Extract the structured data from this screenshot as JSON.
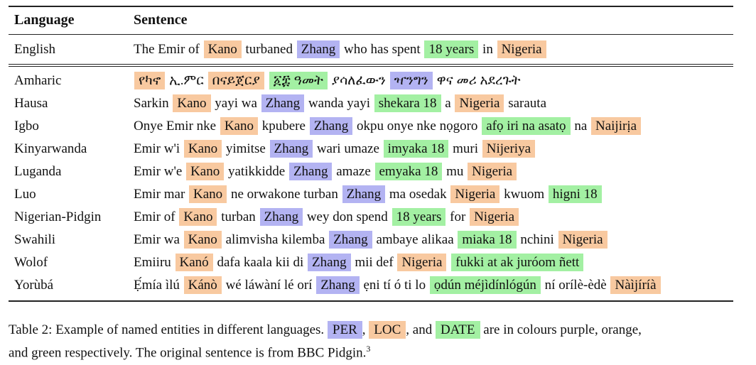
{
  "table": {
    "headers": {
      "language": "Language",
      "sentence": "Sentence"
    },
    "english": {
      "language": "English",
      "segments": [
        {
          "t": "The Emir of",
          "c": ""
        },
        {
          "t": "Kano",
          "c": "loc"
        },
        {
          "t": "turbaned",
          "c": ""
        },
        {
          "t": "Zhang",
          "c": "per"
        },
        {
          "t": "who has spent",
          "c": ""
        },
        {
          "t": "18 years",
          "c": "date"
        },
        {
          "t": "in",
          "c": ""
        },
        {
          "t": "Nigeria",
          "c": "loc"
        }
      ]
    },
    "rows": [
      {
        "language": "Amharic",
        "segments": [
          {
            "t": "የካኖ",
            "c": "loc"
          },
          {
            "t": "ኢ.ምር",
            "c": ""
          },
          {
            "t": "በናይጀርያ",
            "c": "loc"
          },
          {
            "t": "፩፰ ዓመት",
            "c": "date"
          },
          {
            "t": "ያሳለፈውን",
            "c": ""
          },
          {
            "t": "ዣንግን",
            "c": "per"
          },
          {
            "t": "ዋና መሪ አደረጉት",
            "c": ""
          }
        ]
      },
      {
        "language": "Hausa",
        "segments": [
          {
            "t": "Sarkin",
            "c": ""
          },
          {
            "t": "Kano",
            "c": "loc"
          },
          {
            "t": "yayi wa",
            "c": ""
          },
          {
            "t": "Zhang",
            "c": "per"
          },
          {
            "t": "wanda yayi",
            "c": ""
          },
          {
            "t": "shekara 18",
            "c": "date"
          },
          {
            "t": "a",
            "c": ""
          },
          {
            "t": "Nigeria",
            "c": "loc"
          },
          {
            "t": "sarauta",
            "c": ""
          }
        ]
      },
      {
        "language": "Igbo",
        "segments": [
          {
            "t": "Onye Emir nke",
            "c": ""
          },
          {
            "t": "Kano",
            "c": "loc"
          },
          {
            "t": "kpubere",
            "c": ""
          },
          {
            "t": "Zhang",
            "c": "per"
          },
          {
            "t": "okpu onye nke nọgoro",
            "c": ""
          },
          {
            "t": "afọ iri na asatọ",
            "c": "date"
          },
          {
            "t": "na",
            "c": ""
          },
          {
            "t": "Naijirịa",
            "c": "loc"
          }
        ]
      },
      {
        "language": "Kinyarwanda",
        "segments": [
          {
            "t": "Emir w'i",
            "c": ""
          },
          {
            "t": "Kano",
            "c": "loc"
          },
          {
            "t": "yimitse",
            "c": ""
          },
          {
            "t": "Zhang",
            "c": "per"
          },
          {
            "t": "wari umaze",
            "c": ""
          },
          {
            "t": "imyaka 18",
            "c": "date"
          },
          {
            "t": "muri",
            "c": ""
          },
          {
            "t": "Nijeriya",
            "c": "loc"
          }
        ]
      },
      {
        "language": "Luganda",
        "segments": [
          {
            "t": "Emir w'e",
            "c": ""
          },
          {
            "t": "Kano",
            "c": "loc"
          },
          {
            "t": "yatikkidde",
            "c": ""
          },
          {
            "t": "Zhang",
            "c": "per"
          },
          {
            "t": "amaze",
            "c": ""
          },
          {
            "t": "emyaka 18",
            "c": "date"
          },
          {
            "t": "mu",
            "c": ""
          },
          {
            "t": "Nigeria",
            "c": "loc"
          }
        ]
      },
      {
        "language": "Luo",
        "segments": [
          {
            "t": "Emir mar",
            "c": ""
          },
          {
            "t": "Kano",
            "c": "loc"
          },
          {
            "t": "ne orwakone turban",
            "c": ""
          },
          {
            "t": "Zhang",
            "c": "per"
          },
          {
            "t": "ma osedak",
            "c": ""
          },
          {
            "t": "Nigeria",
            "c": "loc"
          },
          {
            "t": "kwuom",
            "c": ""
          },
          {
            "t": "higni 18",
            "c": "date"
          }
        ]
      },
      {
        "language": "Nigerian-Pidgin",
        "segments": [
          {
            "t": "Emir of",
            "c": ""
          },
          {
            "t": "Kano",
            "c": "loc"
          },
          {
            "t": "turban",
            "c": ""
          },
          {
            "t": "Zhang",
            "c": "per"
          },
          {
            "t": "wey don spend",
            "c": ""
          },
          {
            "t": "18 years",
            "c": "date"
          },
          {
            "t": "for",
            "c": ""
          },
          {
            "t": "Nigeria",
            "c": "loc"
          }
        ]
      },
      {
        "language": "Swahili",
        "segments": [
          {
            "t": "Emir wa",
            "c": ""
          },
          {
            "t": "Kano",
            "c": "loc"
          },
          {
            "t": "alimvisha kilemba",
            "c": ""
          },
          {
            "t": "Zhang",
            "c": "per"
          },
          {
            "t": "ambaye alikaa",
            "c": ""
          },
          {
            "t": "miaka 18",
            "c": "date"
          },
          {
            "t": "nchini",
            "c": ""
          },
          {
            "t": "Nigeria",
            "c": "loc"
          }
        ]
      },
      {
        "language": "Wolof",
        "segments": [
          {
            "t": "Emiiru",
            "c": ""
          },
          {
            "t": "Kanó",
            "c": "loc"
          },
          {
            "t": "dafa kaala kii di",
            "c": ""
          },
          {
            "t": "Zhang",
            "c": "per"
          },
          {
            "t": "mii def",
            "c": ""
          },
          {
            "t": "Nigeria",
            "c": "loc"
          },
          {
            "t": "fukki at ak juróom ñett",
            "c": "date"
          }
        ]
      },
      {
        "language": "Yorùbá",
        "segments": [
          {
            "t": "Ẹ́mía ìlú",
            "c": ""
          },
          {
            "t": "Kánò",
            "c": "loc"
          },
          {
            "t": "wé láwàní lé orí",
            "c": ""
          },
          {
            "t": "Zhang",
            "c": "per"
          },
          {
            "t": "ẹni tí ó ti lo",
            "c": ""
          },
          {
            "t": "ọdún méjìdínlógún",
            "c": "date"
          },
          {
            "t": "ní orílè-èdè",
            "c": ""
          },
          {
            "t": "Nàìjíríà",
            "c": "loc"
          }
        ]
      }
    ]
  },
  "caption": {
    "prefix": "Table 2: Example of named entities in different languages.",
    "per": "PER",
    "sep1": ",",
    "loc": "LOC",
    "sep2": ", and",
    "date": "DATE",
    "line1_end": "are in colours purple, orange,",
    "line2": "and green respectively. The original sentence is from BBC Pidgin.",
    "footnote": "3"
  },
  "colors": {
    "per": "#b3b3f2",
    "loc": "#f8c9a0",
    "date": "#a3f0a3"
  }
}
